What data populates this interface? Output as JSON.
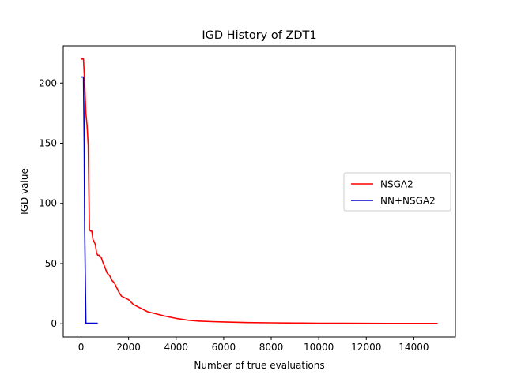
{
  "chart_data": {
    "type": "line",
    "title": "IGD History of ZDT1",
    "xlabel": "Number of true evaluations",
    "ylabel": "IGD value",
    "xlim": [
      -750,
      15750
    ],
    "ylim": [
      -11,
      231
    ],
    "xticks": [
      0,
      2000,
      4000,
      6000,
      8000,
      10000,
      12000,
      14000
    ],
    "yticks": [
      0,
      50,
      100,
      150,
      200
    ],
    "legend_position": "center-right",
    "grid": false,
    "series": [
      {
        "name": "NSGA2",
        "color": "#ff0000",
        "x": [
          0,
          100,
          150,
          200,
          250,
          300,
          350,
          400,
          450,
          500,
          550,
          600,
          650,
          700,
          750,
          800,
          850,
          900,
          1000,
          1100,
          1200,
          1300,
          1400,
          1500,
          1600,
          1700,
          1800,
          1900,
          2000,
          2100,
          2200,
          2400,
          2600,
          2800,
          3000,
          3200,
          3500,
          4000,
          4500,
          5000,
          5500,
          6000,
          7000,
          8000,
          9000,
          10000,
          11000,
          12000,
          13000,
          14000,
          15000
        ],
        "y": [
          220,
          220,
          200,
          175,
          165,
          148,
          78,
          77,
          77,
          70,
          68,
          66,
          59,
          57,
          57,
          56,
          55,
          52,
          47,
          42,
          40,
          36,
          34,
          30,
          26,
          23,
          22,
          21,
          20,
          18,
          16,
          14,
          12,
          10,
          9,
          8,
          6.5,
          4.5,
          3,
          2.2,
          1.8,
          1.5,
          1.0,
          0.8,
          0.6,
          0.5,
          0.4,
          0.35,
          0.3,
          0.3,
          0.3
        ]
      },
      {
        "name": "NN+NSGA2",
        "color": "#0000cc",
        "x": [
          0,
          100,
          130,
          150,
          200,
          250,
          300,
          400,
          500,
          600,
          700
        ],
        "y": [
          205,
          205,
          150,
          80,
          0.5,
          0.5,
          0.5,
          0.5,
          0.5,
          0.5,
          0.5
        ]
      }
    ]
  }
}
